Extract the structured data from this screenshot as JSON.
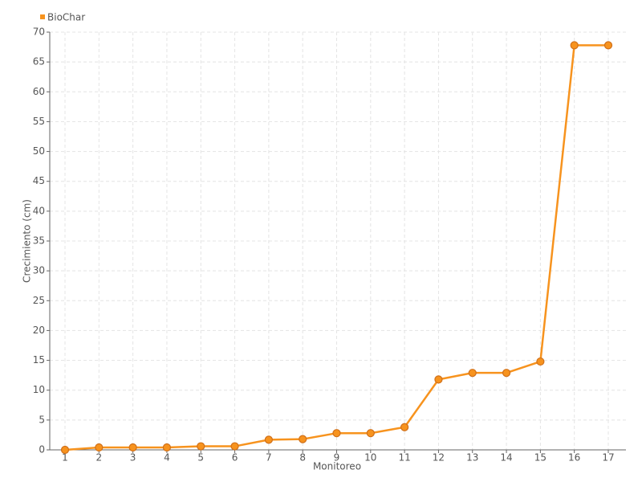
{
  "chart_data": {
    "type": "line",
    "x_label": "Monitoreo",
    "y_label": "Crecimiento (cm)",
    "categories": [
      "1",
      "2",
      "3",
      "4",
      "5",
      "6",
      "7",
      "8",
      "9",
      "10",
      "11",
      "12",
      "13",
      "14",
      "15",
      "16",
      "17"
    ],
    "series": [
      {
        "name": "BioChar",
        "color": "#f7931e",
        "values": [
          0,
          0.4,
          0.4,
          0.4,
          0.6,
          0.6,
          1.7,
          1.8,
          2.8,
          2.8,
          3.8,
          11.8,
          12.9,
          12.9,
          14.8,
          67.8,
          67.8
        ]
      }
    ],
    "ylim": [
      0,
      70
    ],
    "yticks": [
      0,
      5,
      10,
      15,
      20,
      25,
      30,
      35,
      40,
      45,
      50,
      55,
      60,
      65,
      70
    ],
    "grid": true,
    "legend": "top-left"
  }
}
